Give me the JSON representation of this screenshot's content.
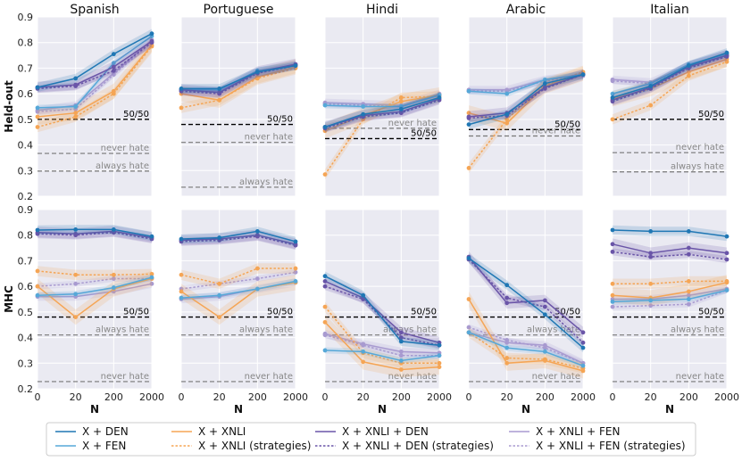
{
  "chart_data": {
    "type": "line",
    "x": [
      0,
      20,
      200,
      2000
    ],
    "xlabel": "N",
    "ylim": [
      0.2,
      0.9
    ],
    "yticks": [
      0.2,
      0.3,
      0.4,
      0.5,
      0.6,
      0.7,
      0.8,
      0.9
    ],
    "rows": [
      {
        "id": "heldout",
        "ylabel": "Held-out"
      },
      {
        "id": "mhc",
        "ylabel": "MHC"
      }
    ],
    "columns": [
      "Spanish",
      "Portuguese",
      "Hindi",
      "Arabic",
      "Italian"
    ],
    "reference_labels": {
      "fifty": "50/50",
      "never": "never hate",
      "always": "always hate"
    },
    "legend": [
      {
        "key": "den",
        "label": "X + DEN",
        "color": "#1f77b4",
        "dash": false
      },
      {
        "key": "fen",
        "label": "X + FEN",
        "color": "#56a8d8",
        "dash": false
      },
      {
        "key": "xnli",
        "label": "X + XNLI",
        "color": "#f5a555",
        "dash": false
      },
      {
        "key": "xnli_s",
        "label": "X + XNLI (strategies)",
        "color": "#f5a555",
        "dash": true
      },
      {
        "key": "xden",
        "label": "X + XNLI + DEN",
        "color": "#6a55a8",
        "dash": false
      },
      {
        "key": "xden_s",
        "label": "X + XNLI + DEN (strategies)",
        "color": "#6a55a8",
        "dash": true
      },
      {
        "key": "xfen",
        "label": "X + XNLI + FEN",
        "color": "#a89ad0",
        "dash": false
      },
      {
        "key": "xfen_s",
        "label": "X + XNLI + FEN (strategies)",
        "color": "#a89ad0",
        "dash": true
      }
    ],
    "panels": [
      {
        "row": "heldout",
        "col": "Spanish",
        "ref": {
          "fifty": 0.5,
          "never": 0.367,
          "always": 0.298
        },
        "series": {
          "den": [
            0.625,
            0.66,
            0.755,
            0.835
          ],
          "fen": [
            0.545,
            0.55,
            0.72,
            0.825
          ],
          "xnli": [
            0.51,
            0.525,
            0.61,
            0.79
          ],
          "xnli_s": [
            0.47,
            0.51,
            0.6,
            0.785
          ],
          "xden": [
            0.625,
            0.635,
            0.705,
            0.805
          ],
          "xden_s": [
            0.62,
            0.63,
            0.69,
            0.8
          ],
          "xfen": [
            0.535,
            0.555,
            0.68,
            0.81
          ],
          "xfen_s": [
            0.53,
            0.54,
            0.675,
            0.8
          ]
        }
      },
      {
        "row": "heldout",
        "col": "Portuguese",
        "ref": {
          "fifty": 0.48,
          "never": 0.41,
          "always": 0.235
        },
        "series": {
          "den": [
            0.62,
            0.62,
            0.685,
            0.71
          ],
          "fen": [
            0.615,
            0.615,
            0.69,
            0.71
          ],
          "xnli": [
            0.6,
            0.575,
            0.665,
            0.705
          ],
          "xnli_s": [
            0.545,
            0.575,
            0.66,
            0.7
          ],
          "xden": [
            0.615,
            0.605,
            0.685,
            0.715
          ],
          "xden_s": [
            0.61,
            0.6,
            0.68,
            0.71
          ],
          "xfen": [
            0.615,
            0.61,
            0.685,
            0.715
          ],
          "xfen_s": [
            0.61,
            0.605,
            0.68,
            0.71
          ]
        }
      },
      {
        "row": "heldout",
        "col": "Hindi",
        "ref": {
          "fifty": 0.425,
          "never": 0.465,
          "always": null
        },
        "series": {
          "den": [
            0.47,
            0.52,
            0.54,
            0.585
          ],
          "fen": [
            0.555,
            0.55,
            0.55,
            0.595
          ],
          "xnli": [
            0.455,
            0.515,
            0.57,
            0.595
          ],
          "xnli_s": [
            0.285,
            0.5,
            0.585,
            0.59
          ],
          "xden": [
            0.47,
            0.515,
            0.53,
            0.58
          ],
          "xden_s": [
            0.465,
            0.51,
            0.525,
            0.575
          ],
          "xfen": [
            0.565,
            0.56,
            0.555,
            0.6
          ],
          "xfen_s": [
            0.56,
            0.555,
            0.55,
            0.595
          ]
        }
      },
      {
        "row": "heldout",
        "col": "Arabic",
        "ref": {
          "fifty": 0.46,
          "never": 0.435,
          "always": null
        },
        "series": {
          "den": [
            0.48,
            0.52,
            0.64,
            0.675
          ],
          "fen": [
            0.61,
            0.6,
            0.655,
            0.675
          ],
          "xnli": [
            0.525,
            0.485,
            0.63,
            0.68
          ],
          "xnli_s": [
            0.31,
            0.5,
            0.635,
            0.685
          ],
          "xden": [
            0.51,
            0.525,
            0.625,
            0.675
          ],
          "xden_s": [
            0.505,
            0.515,
            0.62,
            0.675
          ],
          "xfen": [
            0.615,
            0.615,
            0.655,
            0.675
          ],
          "xfen_s": [
            0.61,
            0.61,
            0.65,
            0.67
          ]
        }
      },
      {
        "row": "heldout",
        "col": "Italian",
        "ref": {
          "fifty": 0.5,
          "never": 0.37,
          "always": 0.295
        },
        "series": {
          "den": [
            0.585,
            0.63,
            0.71,
            0.76
          ],
          "fen": [
            0.6,
            0.64,
            0.715,
            0.755
          ],
          "xnli": [
            0.58,
            0.62,
            0.685,
            0.735
          ],
          "xnli_s": [
            0.5,
            0.555,
            0.67,
            0.725
          ],
          "xden": [
            0.575,
            0.625,
            0.705,
            0.75
          ],
          "xden_s": [
            0.57,
            0.62,
            0.7,
            0.745
          ],
          "xfen": [
            0.655,
            0.645,
            0.71,
            0.755
          ],
          "xfen_s": [
            0.65,
            0.64,
            0.705,
            0.75
          ]
        }
      },
      {
        "row": "mhc",
        "col": "Spanish",
        "ref": {
          "fifty": 0.48,
          "never": 0.228,
          "always": 0.41
        },
        "series": {
          "den": [
            0.82,
            0.822,
            0.822,
            0.795
          ],
          "fen": [
            0.565,
            0.57,
            0.595,
            0.635
          ],
          "xnli": [
            0.6,
            0.48,
            0.59,
            0.63
          ],
          "xnli_s": [
            0.66,
            0.645,
            0.645,
            0.648
          ],
          "xden": [
            0.81,
            0.805,
            0.815,
            0.79
          ],
          "xden_s": [
            0.805,
            0.8,
            0.81,
            0.785
          ],
          "xfen": [
            0.56,
            0.56,
            0.58,
            0.61
          ],
          "xfen_s": [
            0.6,
            0.61,
            0.63,
            0.63
          ]
        }
      },
      {
        "row": "mhc",
        "col": "Portuguese",
        "ref": {
          "fifty": 0.48,
          "never": 0.228,
          "always": 0.41
        },
        "series": {
          "den": [
            0.785,
            0.79,
            0.815,
            0.775
          ],
          "fen": [
            0.555,
            0.565,
            0.59,
            0.62
          ],
          "xnli": [
            0.58,
            0.48,
            0.59,
            0.615
          ],
          "xnli_s": [
            0.645,
            0.61,
            0.67,
            0.67
          ],
          "xden": [
            0.78,
            0.785,
            0.8,
            0.765
          ],
          "xden_s": [
            0.775,
            0.78,
            0.795,
            0.76
          ],
          "xfen": [
            0.55,
            0.56,
            0.59,
            0.615
          ],
          "xfen_s": [
            0.59,
            0.61,
            0.63,
            0.655
          ]
        }
      },
      {
        "row": "mhc",
        "col": "Hindi",
        "ref": {
          "fifty": 0.48,
          "never": 0.228,
          "always": 0.41
        },
        "series": {
          "den": [
            0.64,
            0.565,
            0.385,
            0.37
          ],
          "fen": [
            0.35,
            0.345,
            0.31,
            0.33
          ],
          "xnli": [
            0.46,
            0.305,
            0.275,
            0.285
          ],
          "xnli_s": [
            0.52,
            0.34,
            0.3,
            0.3
          ],
          "xden": [
            0.62,
            0.555,
            0.42,
            0.38
          ],
          "xden_s": [
            0.6,
            0.55,
            0.4,
            0.37
          ],
          "xfen": [
            0.415,
            0.375,
            0.345,
            0.34
          ],
          "xfen_s": [
            0.41,
            0.37,
            0.33,
            0.33
          ]
        }
      },
      {
        "row": "mhc",
        "col": "Arabic",
        "ref": {
          "fifty": 0.48,
          "never": 0.228,
          "always": 0.41
        },
        "series": {
          "den": [
            0.71,
            0.605,
            0.49,
            0.36
          ],
          "fen": [
            0.42,
            0.36,
            0.345,
            0.29
          ],
          "xnli": [
            0.55,
            0.3,
            0.31,
            0.27
          ],
          "xnli_s": [
            0.42,
            0.32,
            0.315,
            0.28
          ],
          "xden": [
            0.715,
            0.535,
            0.545,
            0.42
          ],
          "xden_s": [
            0.705,
            0.555,
            0.52,
            0.38
          ],
          "xfen": [
            0.42,
            0.38,
            0.37,
            0.3
          ],
          "xfen_s": [
            0.44,
            0.39,
            0.36,
            0.3
          ]
        }
      },
      {
        "row": "mhc",
        "col": "Italian",
        "ref": {
          "fifty": 0.48,
          "never": 0.228,
          "always": 0.41
        },
        "series": {
          "den": [
            0.82,
            0.815,
            0.815,
            0.795
          ],
          "fen": [
            0.54,
            0.545,
            0.55,
            0.585
          ],
          "xnli": [
            0.565,
            0.555,
            0.58,
            0.615
          ],
          "xnli_s": [
            0.61,
            0.61,
            0.62,
            0.62
          ],
          "xden": [
            0.765,
            0.73,
            0.75,
            0.73
          ],
          "xden_s": [
            0.735,
            0.715,
            0.725,
            0.705
          ],
          "xfen": [
            0.55,
            0.55,
            0.565,
            0.59
          ],
          "xfen_s": [
            0.52,
            0.525,
            0.53,
            0.585
          ]
        }
      }
    ]
  }
}
